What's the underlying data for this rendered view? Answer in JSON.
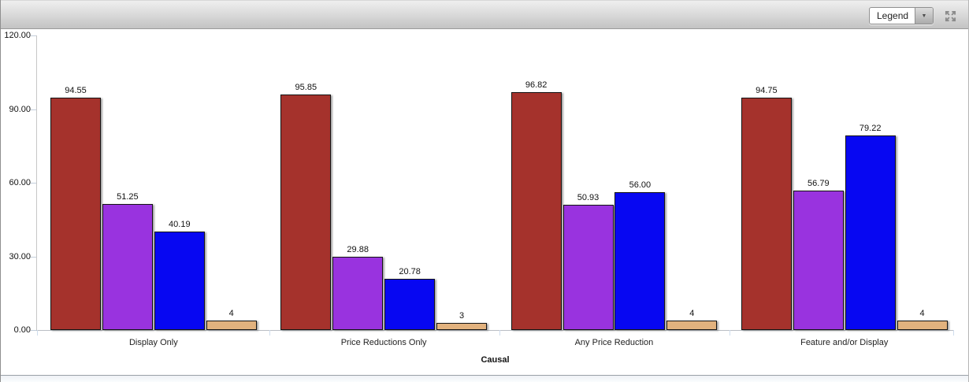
{
  "toolbar": {
    "legend_label": "Legend",
    "icons": {
      "legend_dropdown_arrow": "▼",
      "collapse_arrows": "four-arrows-pointing-inward"
    }
  },
  "chart_data": {
    "type": "bar",
    "title": "",
    "xlabel": "Causal",
    "ylabel": "",
    "ylim": [
      0,
      120
    ],
    "yticks": [
      "0.00",
      "30.00",
      "60.00",
      "90.00",
      "120.00"
    ],
    "grid": false,
    "legend_position": "collapsed-dropdown",
    "categories": [
      "Display Only",
      "Price Reductions Only",
      "Any Price Reduction",
      "Feature and/or Display"
    ],
    "series": [
      {
        "color": "#A5322C",
        "values": [
          94.55,
          95.85,
          96.82,
          94.75
        ],
        "labels": [
          "94.55",
          "95.85",
          "96.82",
          "94.75"
        ]
      },
      {
        "color": "#9933DF",
        "values": [
          51.25,
          29.88,
          50.93,
          56.79
        ],
        "labels": [
          "51.25",
          "29.88",
          "50.93",
          "56.79"
        ]
      },
      {
        "color": "#0707F2",
        "values": [
          40.19,
          20.78,
          56.0,
          79.22
        ],
        "labels": [
          "40.19",
          "20.78",
          "56.00",
          "79.22"
        ]
      },
      {
        "color": "#E2B27E",
        "values": [
          4,
          3,
          4,
          4
        ],
        "labels": [
          "4",
          "3",
          "4",
          "4"
        ]
      }
    ]
  }
}
